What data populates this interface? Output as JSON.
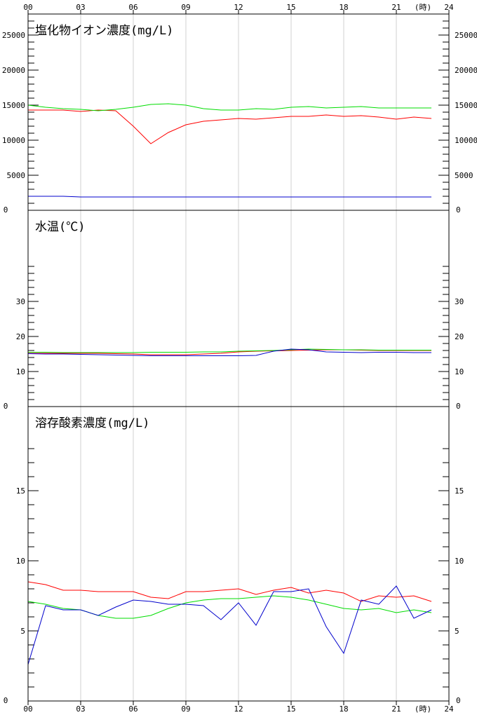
{
  "chart_data": {
    "type": "line",
    "x_hour_labels": [
      "00",
      "03",
      "06",
      "09",
      "12",
      "15",
      "18",
      "21",
      "24"
    ],
    "x_unit": "(時)",
    "x_range": [
      0,
      24
    ],
    "panels": [
      {
        "title": "塩化物イオン濃度(mg/L)",
        "ylim": [
          0,
          28000
        ],
        "y_tick_values": [
          0,
          5000,
          10000,
          15000,
          20000,
          25000
        ],
        "y_tick_labels": [
          "0",
          "5000",
          "10000",
          "15000",
          "20000",
          "25000"
        ],
        "minor_step": 1000,
        "series": [
          {
            "color": "#ff0000",
            "x": [
              0,
              1,
              2,
              3,
              4,
              5,
              6,
              7,
              8,
              9,
              10,
              11,
              12,
              13,
              14,
              15,
              16,
              17,
              18,
              19,
              20,
              21,
              22,
              23
            ],
            "y": [
              14300,
              14300,
              14300,
              14100,
              14300,
              14200,
              12000,
              9500,
              11100,
              12200,
              12700,
              12900,
              13100,
              13000,
              13200,
              13400,
              13400,
              13600,
              13400,
              13500,
              13300,
              13000,
              13300,
              13100
            ]
          },
          {
            "color": "#00dd00",
            "x": [
              0,
              1,
              2,
              3,
              4,
              5,
              6,
              7,
              8,
              9,
              10,
              11,
              12,
              13,
              14,
              15,
              16,
              17,
              18,
              19,
              20,
              21,
              22,
              23
            ],
            "y": [
              15000,
              14700,
              14500,
              14400,
              14200,
              14400,
              14700,
              15100,
              15200,
              15000,
              14500,
              14300,
              14300,
              14500,
              14400,
              14700,
              14800,
              14600,
              14700,
              14800,
              14600,
              14600,
              14600,
              14600
            ]
          },
          {
            "color": "#0000cc",
            "x": [
              0,
              1,
              2,
              3,
              4,
              5,
              6,
              7,
              8,
              9,
              10,
              11,
              12,
              13,
              14,
              15,
              16,
              17,
              18,
              19,
              20,
              21,
              22,
              23
            ],
            "y": [
              2000,
              2000,
              2000,
              1900,
              1900,
              1900,
              1900,
              1900,
              1900,
              1900,
              1900,
              1900,
              1900,
              1900,
              1900,
              1900,
              1900,
              1900,
              1900,
              1900,
              1900,
              1900,
              1900,
              1900
            ]
          }
        ]
      },
      {
        "title": "水温(℃)",
        "ylim": [
          0,
          56
        ],
        "y_tick_values": [
          0,
          10,
          20,
          30
        ],
        "y_tick_labels": [
          "0",
          "10",
          "20",
          "30"
        ],
        "minor_step": 2,
        "minor_max": 40,
        "series": [
          {
            "color": "#ff0000",
            "x": [
              0,
              1,
              2,
              3,
              4,
              5,
              6,
              7,
              8,
              9,
              10,
              11,
              12,
              13,
              14,
              15,
              16,
              17,
              18,
              19,
              20,
              21,
              22,
              23
            ],
            "y": [
              15.2,
              15.2,
              15.2,
              15.2,
              15.2,
              15.1,
              15.0,
              14.8,
              14.8,
              14.8,
              15.0,
              15.2,
              15.6,
              15.8,
              15.9,
              16.0,
              16.1,
              16.2,
              16.2,
              16.1,
              16.0,
              16.0,
              16.0,
              16.0
            ]
          },
          {
            "color": "#00dd00",
            "x": [
              0,
              1,
              2,
              3,
              4,
              5,
              6,
              7,
              8,
              9,
              10,
              11,
              12,
              13,
              14,
              15,
              16,
              17,
              18,
              19,
              20,
              21,
              22,
              23
            ],
            "y": [
              15.5,
              15.5,
              15.4,
              15.4,
              15.4,
              15.4,
              15.4,
              15.5,
              15.5,
              15.5,
              15.6,
              15.6,
              15.8,
              15.9,
              16.0,
              16.2,
              16.4,
              16.3,
              16.2,
              16.2,
              16.1,
              16.1,
              16.1,
              16.1
            ]
          },
          {
            "color": "#0000cc",
            "x": [
              0,
              1,
              2,
              3,
              4,
              5,
              6,
              7,
              8,
              9,
              10,
              11,
              12,
              13,
              14,
              15,
              16,
              17,
              18,
              19,
              20,
              21,
              22,
              23
            ],
            "y": [
              15.1,
              15.0,
              15.0,
              14.9,
              14.8,
              14.7,
              14.6,
              14.5,
              14.5,
              14.5,
              14.5,
              14.5,
              14.5,
              14.6,
              15.8,
              16.4,
              16.2,
              15.6,
              15.5,
              15.4,
              15.5,
              15.5,
              15.4,
              15.4
            ]
          }
        ]
      },
      {
        "title": "溶存酸素濃度(mg/L)",
        "ylim": [
          0,
          21
        ],
        "y_tick_values": [
          0,
          5,
          10,
          15
        ],
        "y_tick_labels": [
          "0",
          "5",
          "10",
          "15"
        ],
        "minor_step": 1,
        "minor_max": 18,
        "series": [
          {
            "color": "#ff0000",
            "x": [
              0,
              1,
              2,
              3,
              4,
              5,
              6,
              7,
              8,
              9,
              10,
              11,
              12,
              13,
              14,
              15,
              16,
              17,
              18,
              19,
              20,
              21,
              22,
              23
            ],
            "y": [
              8.5,
              8.3,
              7.9,
              7.9,
              7.8,
              7.8,
              7.8,
              7.4,
              7.3,
              7.8,
              7.8,
              7.9,
              8.0,
              7.6,
              7.9,
              8.1,
              7.7,
              7.9,
              7.7,
              7.1,
              7.5,
              7.4,
              7.5,
              7.1
            ]
          },
          {
            "color": "#00dd00",
            "x": [
              0,
              1,
              2,
              3,
              4,
              5,
              6,
              7,
              8,
              9,
              10,
              11,
              12,
              13,
              14,
              15,
              16,
              17,
              18,
              19,
              20,
              21,
              22,
              23
            ],
            "y": [
              7.1,
              6.9,
              6.6,
              6.5,
              6.1,
              5.9,
              5.9,
              6.1,
              6.6,
              7.0,
              7.2,
              7.3,
              7.3,
              7.4,
              7.5,
              7.4,
              7.2,
              6.9,
              6.6,
              6.5,
              6.6,
              6.3,
              6.5,
              6.3
            ]
          },
          {
            "color": "#0000cc",
            "x": [
              0,
              1,
              2,
              3,
              4,
              5,
              6,
              7,
              8,
              9,
              10,
              11,
              12,
              13,
              14,
              15,
              16,
              17,
              18,
              19,
              20,
              21,
              22,
              23
            ],
            "y": [
              2.6,
              6.8,
              6.5,
              6.5,
              6.1,
              6.7,
              7.2,
              7.1,
              6.9,
              6.9,
              6.8,
              5.8,
              7.0,
              5.4,
              7.8,
              7.8,
              8.0,
              5.3,
              3.4,
              7.2,
              6.9,
              8.2,
              5.9,
              6.5
            ]
          }
        ]
      }
    ]
  }
}
